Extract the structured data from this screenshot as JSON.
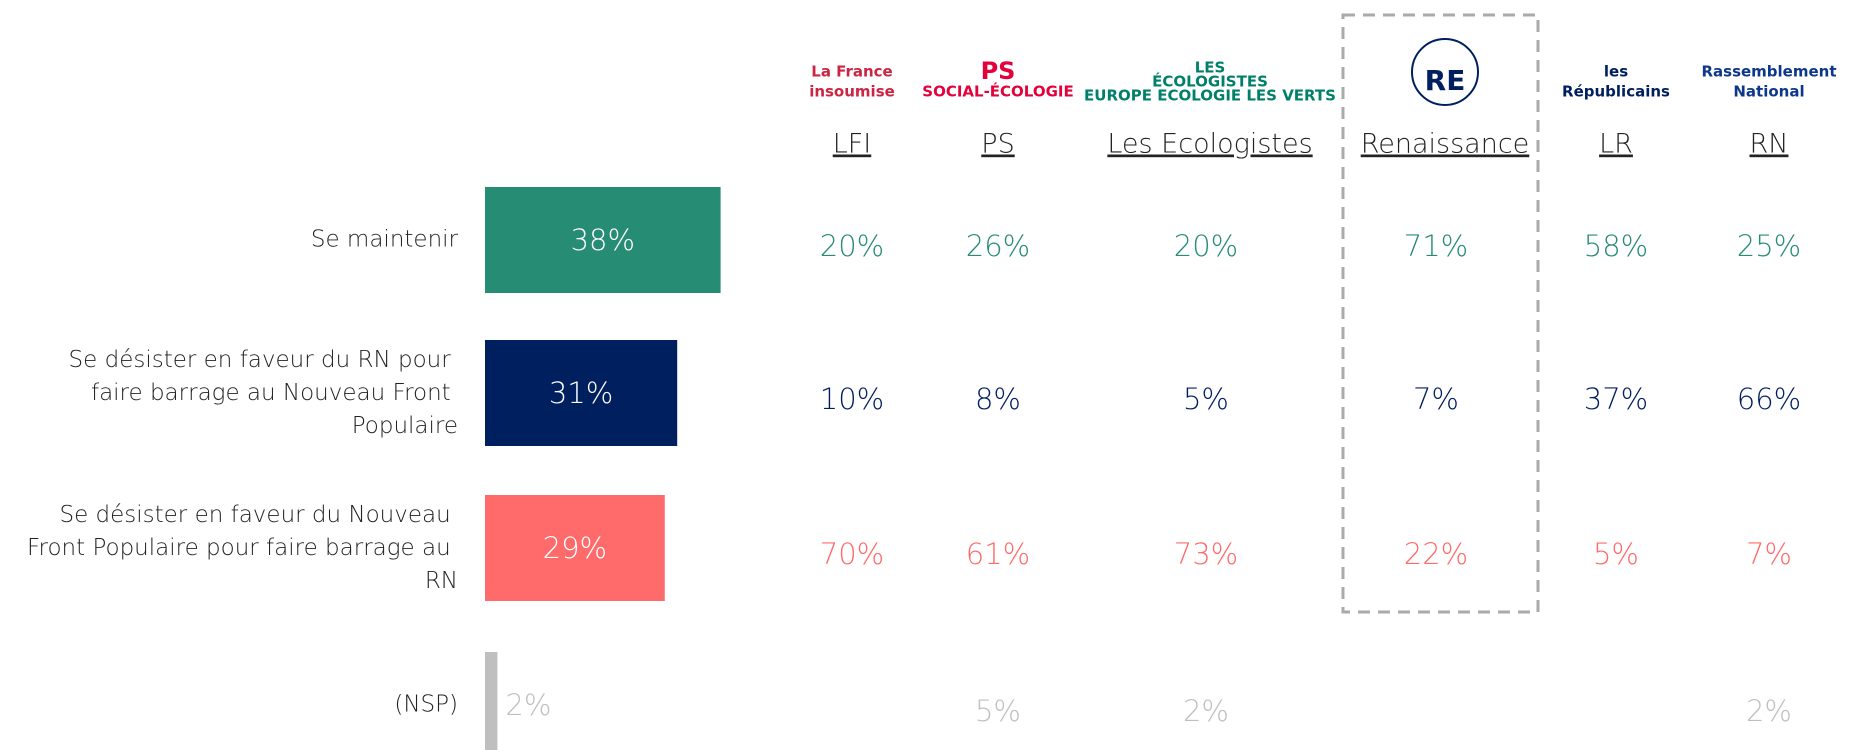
{
  "chart_data": {
    "type": "bar",
    "categories": [
      "Se maintenir",
      "Se désister en faveur du RN pour faire barrage au Nouveau Front Populaire",
      "Se désister en faveur du Nouveau Front Populaire pour faire barrage au RN",
      "(NSP)"
    ],
    "values": [
      38,
      31,
      29,
      2
    ],
    "value_labels": [
      "38%",
      "31%",
      "29%",
      "2%"
    ],
    "colors": [
      "#268c74",
      "#001f5f",
      "#ff6b6b",
      "#bfbfbf"
    ],
    "columns": [
      {
        "name": "LFI",
        "logo": [
          "La France",
          "insoumise"
        ],
        "values": [
          20,
          10,
          70,
          null
        ],
        "value_labels": [
          "20%",
          "10%",
          "70%",
          null
        ]
      },
      {
        "name": "PS",
        "logo": [
          "PS",
          "SOCIAL-ÉCOLOGIE"
        ],
        "values": [
          26,
          8,
          61,
          5
        ],
        "value_labels": [
          "26%",
          "8%",
          "61%",
          "5%"
        ]
      },
      {
        "name": "Les Ecologistes",
        "logo": [
          "LES",
          "ÉCOLOGISTES",
          "EUROPE ECOLOGIE LES VERTS"
        ],
        "values": [
          20,
          5,
          73,
          2
        ],
        "value_labels": [
          "20%",
          "5%",
          "73%",
          "2%"
        ]
      },
      {
        "name": "Renaissance",
        "logo": [
          "RE"
        ],
        "values": [
          71,
          7,
          22,
          null
        ],
        "value_labels": [
          "71%",
          "7%",
          "22%",
          null
        ],
        "highlight": true
      },
      {
        "name": "LR",
        "logo": [
          "les",
          "Républicains"
        ],
        "values": [
          58,
          37,
          5,
          null
        ],
        "value_labels": [
          "58%",
          "37%",
          "5%",
          null
        ]
      },
      {
        "name": "RN",
        "logo": [
          "Rassemblement",
          "National"
        ],
        "values": [
          25,
          66,
          7,
          2
        ],
        "value_labels": [
          "25%",
          "66%",
          "7%",
          "2%"
        ]
      }
    ]
  }
}
